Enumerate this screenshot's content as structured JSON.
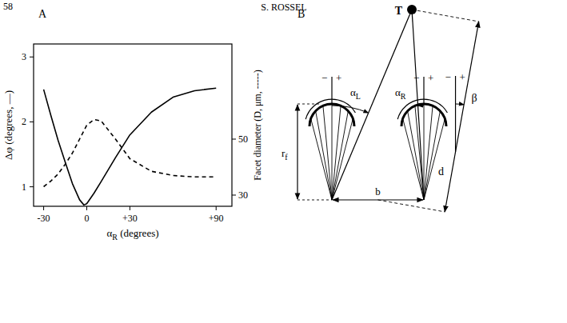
{
  "header": {
    "page": "58",
    "author": "S. ROSSEL"
  },
  "panel_labels": {
    "a": "A",
    "b": "B"
  },
  "chart_data": {
    "type": "line",
    "xlabel": "αR (degrees)",
    "ylabel": "Δφ (degrees, —)",
    "y2label": "Facet diameter (D, μm, -----)",
    "x": [
      -30,
      -25,
      -20,
      -15,
      -10,
      -5,
      -2,
      0,
      5,
      10,
      20,
      30,
      45,
      60,
      75,
      90
    ],
    "series": [
      {
        "color": "#000000",
        "line_style": "solid",
        "values": [
          2.5,
          2.1,
          1.72,
          1.38,
          1.05,
          0.8,
          0.72,
          0.74,
          0.9,
          1.08,
          1.45,
          1.8,
          2.15,
          2.38,
          2.48,
          2.52
        ]
      },
      {
        "color": "#000000",
        "line_style": "dashed",
        "axis": "y2",
        "values": [
          33,
          35,
          37.5,
          41,
          45,
          50,
          53,
          55,
          57,
          56.5,
          50,
          43,
          38.5,
          37,
          36.5,
          36.5
        ]
      }
    ],
    "xlim": [
      -37,
      101
    ],
    "xticks": [
      -30,
      0,
      {
        "value": 30,
        "label": "+30"
      },
      {
        "value": 90,
        "label": "+90"
      }
    ],
    "ylim": [
      0.7,
      3.2
    ],
    "yticks": [
      1,
      2,
      3
    ],
    "y2lim": [
      26,
      84
    ],
    "y2ticks": [
      30,
      50
    ],
    "grid": false
  },
  "diagram": {
    "target": "T",
    "angles": {
      "alpha_l": "αL",
      "alpha_r": "αR",
      "beta": "β"
    },
    "distances": {
      "d": "d",
      "b": "b",
      "r_f": "rf"
    },
    "signs": {
      "minus": "−",
      "plus": "+"
    }
  }
}
